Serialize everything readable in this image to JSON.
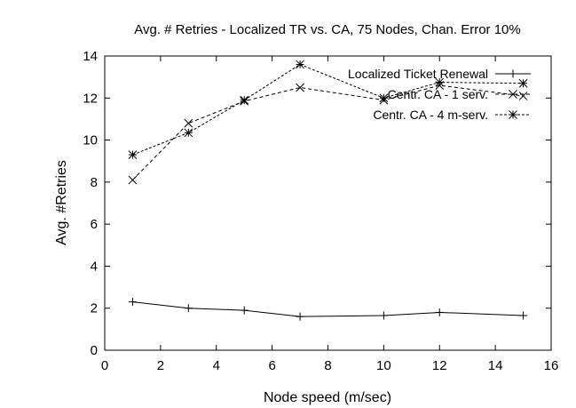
{
  "chart_data": {
    "type": "line",
    "title": "Avg. # Retries - Localized TR vs. CA, 75 Nodes, Chan. Error 10%",
    "xlabel": "Node speed (m/sec)",
    "ylabel": "Avg. #Retries",
    "xlim": [
      0,
      16
    ],
    "ylim": [
      0,
      14
    ],
    "xticks": [
      0,
      2,
      4,
      6,
      8,
      10,
      12,
      14,
      16
    ],
    "yticks": [
      0,
      2,
      4,
      6,
      8,
      10,
      12,
      14
    ],
    "grid": false,
    "legend_position": "top-right",
    "series": [
      {
        "name": "Localized Ticket Renewal",
        "marker": "plus",
        "dash": "solid",
        "x": [
          1,
          3,
          5,
          7,
          10,
          12,
          15
        ],
        "y": [
          2.3,
          2.0,
          1.9,
          1.6,
          1.65,
          1.8,
          1.65
        ]
      },
      {
        "name": "Centr. CA - 1 serv.",
        "marker": "cross",
        "dash": "dashed",
        "x": [
          1,
          3,
          5,
          7,
          10,
          12,
          15
        ],
        "y": [
          8.1,
          10.8,
          11.85,
          12.5,
          11.9,
          12.6,
          12.1
        ]
      },
      {
        "name": "Centr. CA - 4 m-serv.",
        "marker": "star",
        "dash": "dotted",
        "x": [
          1,
          3,
          5,
          7,
          10,
          12,
          15
        ],
        "y": [
          9.3,
          10.35,
          11.9,
          13.6,
          12.0,
          12.75,
          12.7
        ]
      }
    ]
  }
}
